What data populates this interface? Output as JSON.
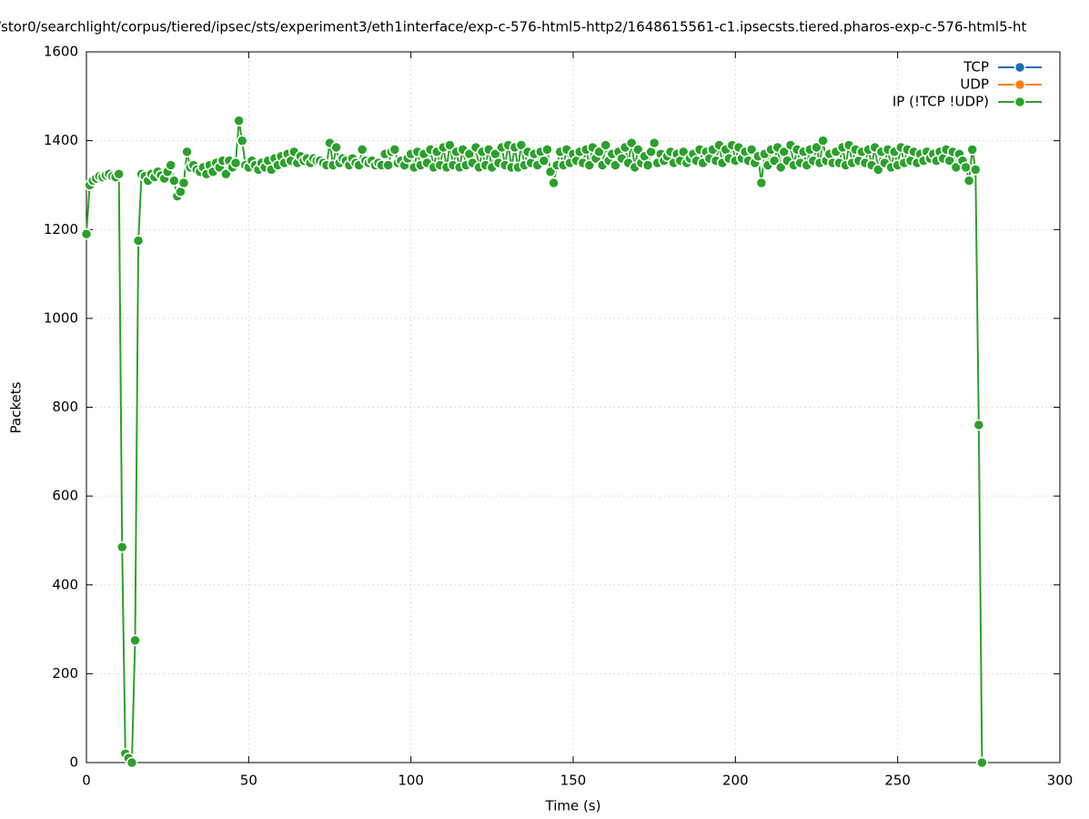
{
  "chart_data": {
    "type": "line",
    "title": "/stor0/searchlight/corpus/tiered/ipsec/sts/experiment3/eth1interface/exp-c-576-html5-http2/1648615561-c1.ipsecsts.tiered.pharos-exp-c-576-html5-ht",
    "xlabel": "Time (s)",
    "ylabel": "Packets",
    "xlim": [
      0,
      300
    ],
    "xticks": [
      0,
      50,
      100,
      150,
      200,
      250,
      300
    ],
    "ylim": [
      0,
      1600
    ],
    "yticks": [
      0,
      200,
      400,
      600,
      800,
      1000,
      1200,
      1400,
      1600
    ],
    "grid": true,
    "legend": "top-right",
    "series": [
      {
        "name": "TCP",
        "color": "#1f6fb4",
        "x": [],
        "values": []
      },
      {
        "name": "UDP",
        "color": "#ff7f0e",
        "x": [],
        "values": []
      },
      {
        "name": "IP (!TCP  !UDP)",
        "color": "#2ca02c",
        "x": [
          0,
          1,
          2,
          3,
          4,
          5,
          6,
          7,
          8,
          9,
          10,
          11,
          12,
          13,
          14,
          15,
          16,
          17,
          18,
          19,
          20,
          21,
          22,
          23,
          24,
          25,
          26,
          27,
          28,
          29,
          30,
          31,
          32,
          33,
          34,
          35,
          36,
          37,
          38,
          39,
          40,
          41,
          42,
          43,
          44,
          45,
          46,
          47,
          48,
          49,
          50,
          51,
          52,
          53,
          54,
          55,
          56,
          57,
          58,
          59,
          60,
          61,
          62,
          63,
          64,
          65,
          66,
          67,
          68,
          69,
          70,
          71,
          72,
          73,
          74,
          75,
          76,
          77,
          78,
          79,
          80,
          81,
          82,
          83,
          84,
          85,
          86,
          87,
          88,
          89,
          90,
          91,
          92,
          93,
          94,
          95,
          96,
          97,
          98,
          99,
          100,
          101,
          102,
          103,
          104,
          105,
          106,
          107,
          108,
          109,
          110,
          111,
          112,
          113,
          114,
          115,
          116,
          117,
          118,
          119,
          120,
          121,
          122,
          123,
          124,
          125,
          126,
          127,
          128,
          129,
          130,
          131,
          132,
          133,
          134,
          135,
          136,
          137,
          138,
          139,
          140,
          141,
          142,
          143,
          144,
          145,
          146,
          147,
          148,
          149,
          150,
          151,
          152,
          153,
          154,
          155,
          156,
          157,
          158,
          159,
          160,
          161,
          162,
          163,
          164,
          165,
          166,
          167,
          168,
          169,
          170,
          171,
          172,
          173,
          174,
          175,
          176,
          177,
          178,
          179,
          180,
          181,
          182,
          183,
          184,
          185,
          186,
          187,
          188,
          189,
          190,
          191,
          192,
          193,
          194,
          195,
          196,
          197,
          198,
          199,
          200,
          201,
          202,
          203,
          204,
          205,
          206,
          207,
          208,
          209,
          210,
          211,
          212,
          213,
          214,
          215,
          216,
          217,
          218,
          219,
          220,
          221,
          222,
          223,
          224,
          225,
          226,
          227,
          228,
          229,
          230,
          231,
          232,
          233,
          234,
          235,
          236,
          237,
          238,
          239,
          240,
          241,
          242,
          243,
          244,
          245,
          246,
          247,
          248,
          249,
          250,
          251,
          252,
          253,
          254,
          255,
          256,
          257,
          258,
          259,
          260,
          261,
          262,
          263,
          264,
          265,
          266,
          267,
          268,
          269,
          270,
          271,
          272,
          273,
          274,
          275,
          276
        ],
        "values": [
          1190,
          1300,
          1310,
          1315,
          1320,
          1318,
          1322,
          1325,
          1320,
          1318,
          1325,
          485,
          20,
          10,
          0,
          275,
          1175,
          1325,
          1320,
          1310,
          1325,
          1318,
          1330,
          1322,
          1315,
          1330,
          1345,
          1310,
          1275,
          1285,
          1305,
          1375,
          1340,
          1345,
          1335,
          1330,
          1340,
          1325,
          1345,
          1330,
          1350,
          1340,
          1355,
          1325,
          1355,
          1340,
          1350,
          1445,
          1400,
          1345,
          1340,
          1355,
          1345,
          1335,
          1350,
          1340,
          1355,
          1335,
          1360,
          1345,
          1365,
          1350,
          1370,
          1355,
          1375,
          1350,
          1365,
          1355,
          1360,
          1350,
          1360,
          1355,
          1355,
          1350,
          1345,
          1395,
          1345,
          1385,
          1350,
          1360,
          1355,
          1345,
          1360,
          1350,
          1345,
          1380,
          1355,
          1350,
          1355,
          1345,
          1350,
          1345,
          1370,
          1345,
          1375,
          1380,
          1350,
          1355,
          1345,
          1360,
          1370,
          1340,
          1375,
          1345,
          1370,
          1350,
          1380,
          1340,
          1375,
          1345,
          1385,
          1340,
          1390,
          1345,
          1375,
          1340,
          1380,
          1345,
          1370,
          1350,
          1385,
          1340,
          1375,
          1345,
          1380,
          1340,
          1370,
          1350,
          1385,
          1345,
          1390,
          1340,
          1385,
          1340,
          1390,
          1345,
          1375,
          1350,
          1370,
          1345,
          1375,
          1355,
          1380,
          1330,
          1305,
          1345,
          1375,
          1345,
          1380,
          1350,
          1370,
          1355,
          1375,
          1350,
          1380,
          1345,
          1385,
          1360,
          1375,
          1345,
          1390,
          1355,
          1370,
          1345,
          1375,
          1360,
          1385,
          1350,
          1395,
          1340,
          1380,
          1350,
          1365,
          1345,
          1375,
          1395,
          1350,
          1370,
          1355,
          1365,
          1375,
          1350,
          1370,
          1355,
          1375,
          1350,
          1360,
          1370,
          1355,
          1380,
          1350,
          1375,
          1360,
          1380,
          1355,
          1390,
          1350,
          1380,
          1360,
          1390,
          1355,
          1385,
          1360,
          1375,
          1355,
          1380,
          1350,
          1365,
          1305,
          1370,
          1345,
          1380,
          1355,
          1385,
          1340,
          1375,
          1355,
          1390,
          1345,
          1380,
          1350,
          1375,
          1345,
          1380,
          1355,
          1385,
          1350,
          1400,
          1355,
          1370,
          1350,
          1375,
          1350,
          1385,
          1345,
          1390,
          1350,
          1380,
          1355,
          1375,
          1350,
          1380,
          1345,
          1385,
          1335,
          1375,
          1350,
          1380,
          1340,
          1375,
          1345,
          1385,
          1350,
          1380,
          1355,
          1375,
          1350,
          1370,
          1355,
          1375,
          1360,
          1370,
          1355,
          1375,
          1360,
          1380,
          1355,
          1375,
          1340,
          1370,
          1355,
          1340,
          1310,
          1380,
          1335,
          760,
          0
        ]
      }
    ]
  }
}
